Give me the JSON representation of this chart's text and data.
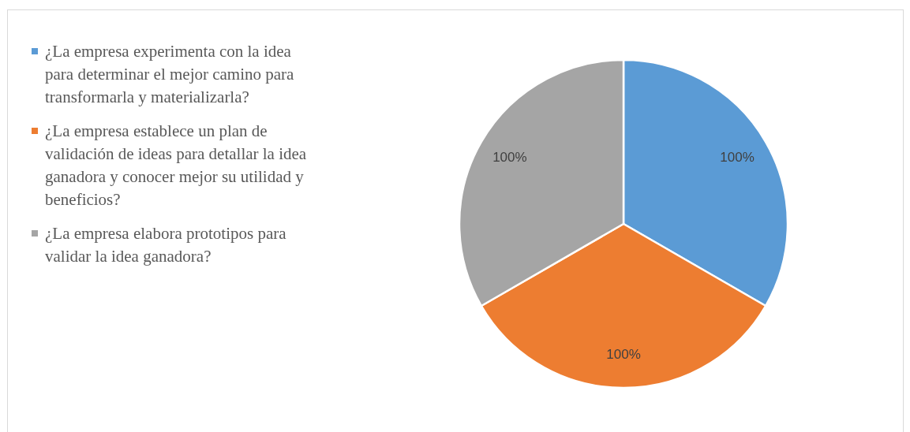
{
  "chart_data": {
    "type": "pie",
    "categories": [
      "¿La empresa experimenta con la idea para determinar el mejor camino para transformarla y materializarla?",
      "¿La empresa establece un plan de validación de ideas para detallar la idea ganadora y conocer mejor su utilidad y beneficios?",
      "¿La empresa elabora prototipos para validar la idea ganadora?"
    ],
    "values": [
      100,
      100,
      100
    ],
    "value_labels": [
      "100%",
      "100%",
      "100%"
    ],
    "colors": [
      "#5b9bd5",
      "#ed7d31",
      "#a5a5a5"
    ],
    "legend": "left"
  }
}
